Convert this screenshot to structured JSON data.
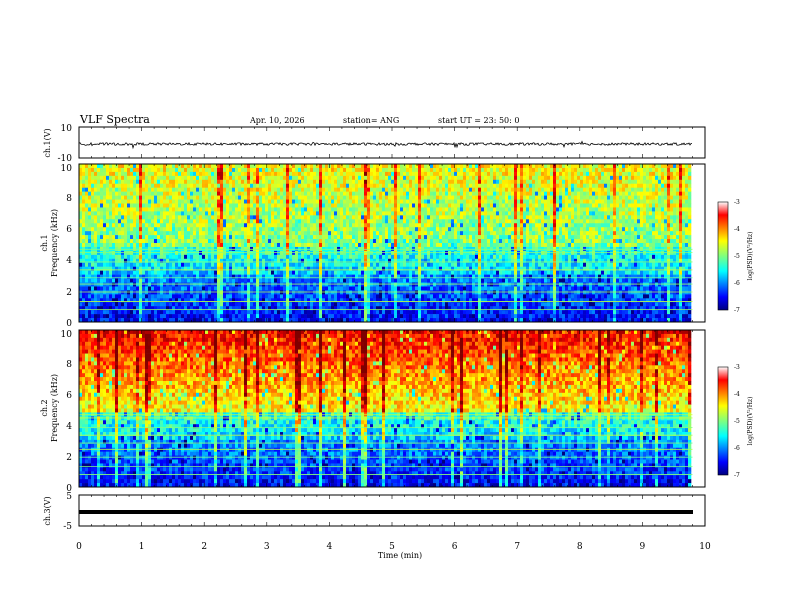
{
  "header": {
    "title": "VLF Spectra",
    "date": "Apr. 10, 2026",
    "station": "station= ANG",
    "start": "start  UT  =   23: 50: 0"
  },
  "chart_data": [
    {
      "id": "waveform-ch1",
      "type": "line",
      "ylabel": "ch.1(V)",
      "ylim": [
        -10,
        10
      ],
      "ytick_labels": [
        "10",
        "-10"
      ],
      "description_level": -1
    },
    {
      "id": "spectrogram-ch1",
      "type": "heatmap",
      "ylabel_channel": "ch.1",
      "ylabel": "Frequency  (kHz)",
      "ylim": [
        0,
        10
      ],
      "ytick_labels": [
        "10",
        "8",
        "6",
        "4",
        "2",
        "0"
      ],
      "colorbar": {
        "label": "log(PSD)(V²/Hz)",
        "range": [
          -7,
          -3
        ],
        "tick_labels": [
          "-3",
          "-4",
          "-5",
          "-6",
          "-7"
        ]
      }
    },
    {
      "id": "spectrogram-ch2",
      "type": "heatmap",
      "ylabel_channel": "ch.2",
      "ylabel": "Frequency  (kHz)",
      "ylim": [
        0,
        10
      ],
      "ytick_labels": [
        "10",
        "8",
        "6",
        "4",
        "2",
        "0"
      ],
      "colorbar": {
        "label": "log(PSD)(V²/Hz)",
        "range": [
          -7,
          -3
        ],
        "tick_labels": [
          "-3",
          "-4",
          "-5",
          "-6",
          "-7"
        ]
      }
    },
    {
      "id": "waveform-ch3",
      "type": "line",
      "ylabel": "ch.3(V)",
      "ylim": [
        -5,
        5
      ],
      "ytick_labels": [
        "5",
        "-5"
      ],
      "level": -1
    }
  ],
  "xaxis": {
    "label": "Time  (min)",
    "range": [
      0,
      10
    ],
    "tick_labels": [
      "0",
      "1",
      "2",
      "3",
      "4",
      "5",
      "6",
      "7",
      "8",
      "9",
      "10"
    ]
  },
  "colors": {
    "jet": [
      "#00007f",
      "#0000ff",
      "#007fff",
      "#00ffff",
      "#7fff7f",
      "#ffff00",
      "#ff7f00",
      "#ff0000",
      "#7f0000"
    ]
  }
}
